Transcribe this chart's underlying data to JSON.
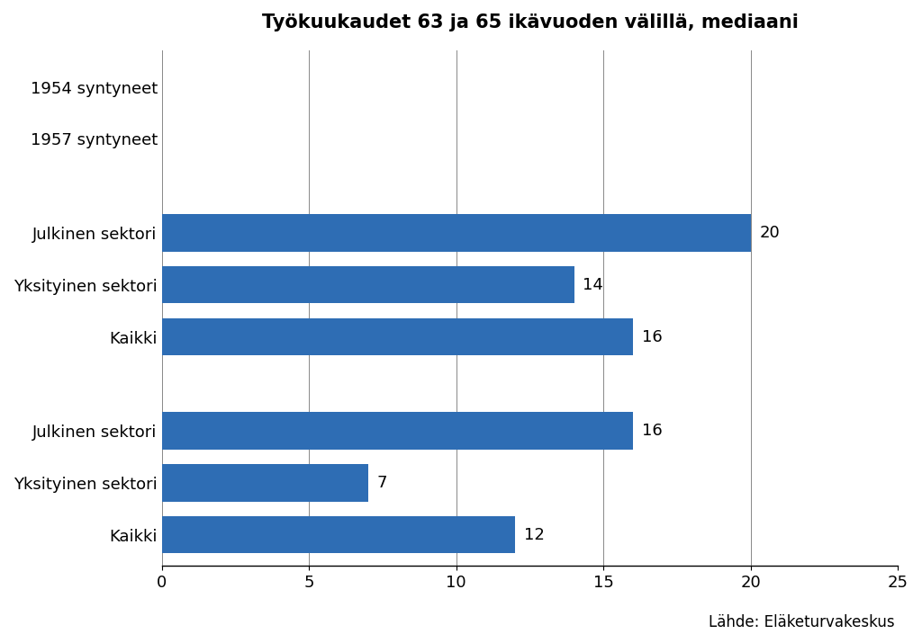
{
  "title": "Työkuukaudet 63 ja 65 ikävuoden välillä, mediaani",
  "source": "Lähde: Eläketurvakeskus",
  "bar_color": "#2E6DB4",
  "background_color": "#ffffff",
  "bar_positions": [
    0,
    1,
    2,
    3.8,
    4.8,
    5.8,
    7.6,
    8.6
  ],
  "bar_values": [
    12,
    7,
    16,
    16,
    14,
    20,
    null,
    null
  ],
  "bar_labels": [
    "Kaikki",
    "Yksityinen sektori",
    "Julkinen sektori",
    "Kaikki",
    "Yksityinen sektori",
    "Julkinen sektori",
    "1957 syntyneet",
    "1954 syntyneet"
  ],
  "is_group_label": [
    false,
    false,
    false,
    false,
    false,
    false,
    true,
    true
  ],
  "xlim": [
    0,
    25
  ],
  "xticks": [
    0,
    5,
    10,
    15,
    20,
    25
  ],
  "title_fontsize": 15,
  "label_fontsize": 13,
  "tick_fontsize": 13,
  "source_fontsize": 12,
  "bar_height": 0.72
}
